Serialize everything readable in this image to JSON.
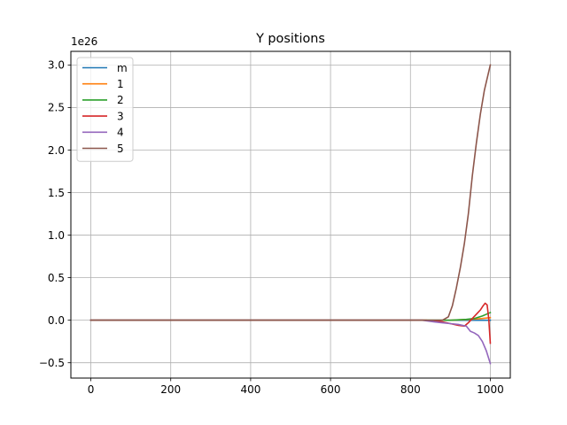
{
  "chart_data": {
    "type": "line",
    "title": "Y positions",
    "xlabel": "",
    "ylabel": "",
    "y_offset_text": "1e26",
    "xlim": [
      -50,
      1050
    ],
    "ylim": [
      -0.68,
      3.16
    ],
    "x_ticks": [
      0,
      200,
      400,
      600,
      800,
      1000
    ],
    "x_tick_labels": [
      "0",
      "200",
      "400",
      "600",
      "800",
      "1000"
    ],
    "y_ticks": [
      -0.5,
      0.0,
      0.5,
      1.0,
      1.5,
      2.0,
      2.5,
      3.0
    ],
    "y_tick_labels": [
      "−0.5",
      "0.0",
      "0.5",
      "1.0",
      "1.5",
      "2.0",
      "2.5",
      "3.0"
    ],
    "grid": true,
    "legend_position": "upper-left",
    "series": [
      {
        "name": "m",
        "color": "#1f77b4",
        "x": [
          0,
          800,
          900,
          950,
          1000
        ],
        "y": [
          0,
          0,
          0,
          0,
          0
        ]
      },
      {
        "name": "1",
        "color": "#ff7f0e",
        "x": [
          0,
          800,
          900,
          950,
          980,
          1000
        ],
        "y": [
          0,
          0,
          0,
          0.01,
          0.02,
          0.03
        ]
      },
      {
        "name": "2",
        "color": "#2ca02c",
        "x": [
          0,
          800,
          850,
          900,
          940,
          960,
          980,
          990,
          1000
        ],
        "y": [
          0,
          0,
          0,
          0,
          0.01,
          0.02,
          0.05,
          0.07,
          0.09
        ]
      },
      {
        "name": "3",
        "color": "#d62728",
        "x": [
          0,
          840,
          880,
          900,
          920,
          935,
          945,
          955,
          965,
          975,
          982,
          987,
          992,
          996,
          1000
        ],
        "y": [
          0,
          0,
          -0.02,
          -0.04,
          -0.06,
          -0.07,
          -0.03,
          0.02,
          0.07,
          0.12,
          0.17,
          0.2,
          0.18,
          0.02,
          -0.27
        ]
      },
      {
        "name": "4",
        "color": "#9467bd",
        "x": [
          0,
          830,
          860,
          880,
          900,
          920,
          940,
          950,
          960,
          970,
          980,
          990,
          1000
        ],
        "y": [
          0,
          0,
          -0.02,
          -0.03,
          -0.04,
          -0.05,
          -0.07,
          -0.13,
          -0.15,
          -0.18,
          -0.25,
          -0.36,
          -0.51
        ]
      },
      {
        "name": "5",
        "color": "#8c564b",
        "x": [
          0,
          880,
          895,
          905,
          915,
          925,
          935,
          945,
          955,
          965,
          975,
          985,
          1000
        ],
        "y": [
          0,
          0,
          0.04,
          0.17,
          0.38,
          0.62,
          0.9,
          1.25,
          1.7,
          2.08,
          2.42,
          2.7,
          3.0
        ]
      }
    ]
  }
}
